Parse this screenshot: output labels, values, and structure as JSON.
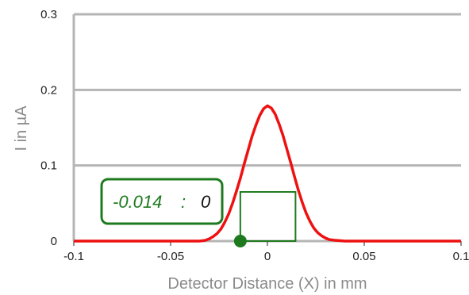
{
  "chart_data": {
    "type": "line",
    "title": "",
    "xlabel": "Detector Distance (X) in mm",
    "ylabel": "I in µA",
    "xlim": [
      -0.1,
      0.1
    ],
    "ylim": [
      0,
      0.3
    ],
    "x_ticks": [
      "-0.1",
      "-0.05",
      "0",
      "0.05",
      "0.1"
    ],
    "y_ticks": [
      "0",
      "0.1",
      "0.2",
      "0.3"
    ],
    "grid": "horizontal",
    "series": [
      {
        "color": "#ee1111",
        "x": [
          -0.1,
          -0.04,
          -0.035,
          -0.032,
          -0.03,
          -0.028,
          -0.026,
          -0.024,
          -0.022,
          -0.02,
          -0.018,
          -0.016,
          -0.014,
          -0.012,
          -0.01,
          -0.008,
          -0.006,
          -0.004,
          -0.002,
          0.0,
          0.002,
          0.004,
          0.006,
          0.008,
          0.01,
          0.012,
          0.014,
          0.016,
          0.018,
          0.02,
          0.022,
          0.024,
          0.026,
          0.028,
          0.03,
          0.032,
          0.035,
          0.04,
          0.1
        ],
        "y": [
          0.0,
          0.0,
          0.0,
          0.001,
          0.003,
          0.006,
          0.01,
          0.016,
          0.025,
          0.036,
          0.05,
          0.066,
          0.083,
          0.102,
          0.12,
          0.138,
          0.153,
          0.166,
          0.175,
          0.179,
          0.176,
          0.168,
          0.155,
          0.14,
          0.122,
          0.104,
          0.085,
          0.067,
          0.051,
          0.037,
          0.026,
          0.017,
          0.011,
          0.007,
          0.004,
          0.002,
          0.001,
          0.0,
          0.0
        ]
      }
    ],
    "window": {
      "color": "#1e7a1e",
      "x_start": -0.014,
      "x_end": 0.0145,
      "height": 0.065
    },
    "marker": {
      "color": "#1e7a1e",
      "x": -0.014,
      "y": 0
    }
  },
  "readout": {
    "x_value": "-0.014",
    "separator": ":",
    "y_value": "0"
  }
}
